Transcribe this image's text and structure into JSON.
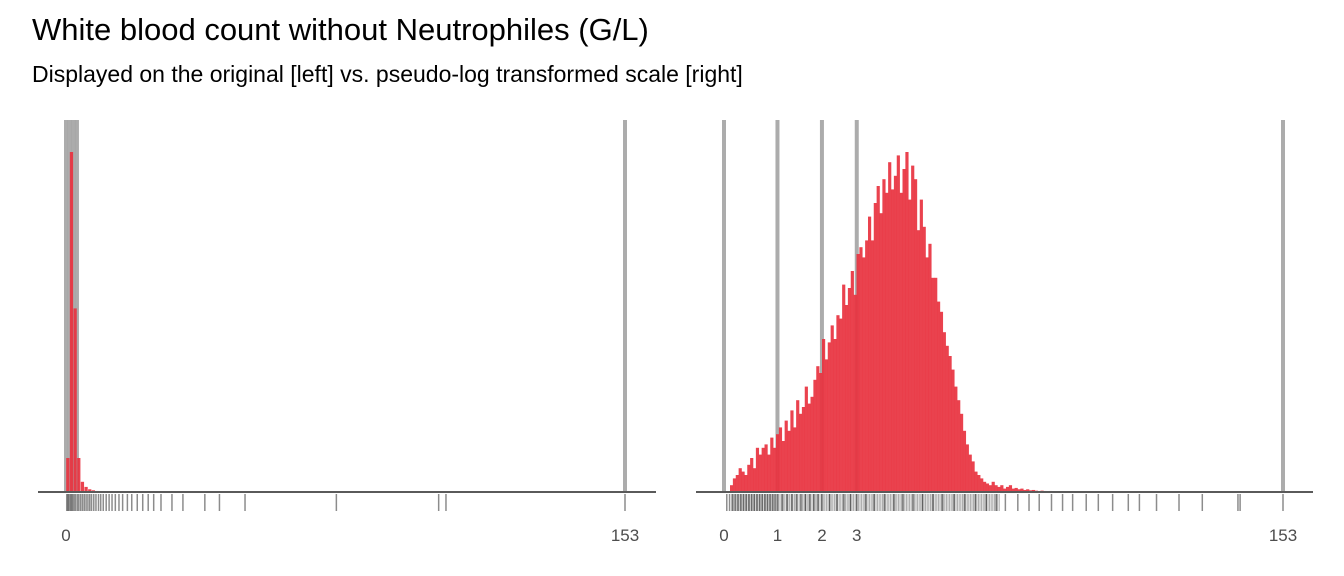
{
  "title": "White blood count without Neutrophiles (G/L)",
  "subtitle": "Displayed on the original [left] vs. pseudo-log transformed scale [right]",
  "colors": {
    "bar": "#e8323f",
    "refline": "#9e9e9e",
    "axis": "#5a5a5a",
    "rug": "#000000"
  },
  "chart_data": [
    {
      "type": "histogram",
      "scale": "original",
      "position": "left",
      "xlim": [
        0,
        153
      ],
      "reference_lines": [
        0,
        1,
        2,
        3,
        153
      ],
      "tick_labels": [
        "0",
        "153"
      ],
      "tick_values": [
        0,
        153
      ],
      "bin_width": 1,
      "bins": [
        {
          "x": 0,
          "count": 0.1
        },
        {
          "x": 1,
          "count": 1.0
        },
        {
          "x": 2,
          "count": 0.54
        },
        {
          "x": 3,
          "count": 0.1
        },
        {
          "x": 4,
          "count": 0.03
        },
        {
          "x": 5,
          "count": 0.015
        },
        {
          "x": 6,
          "count": 0.008
        },
        {
          "x": 7,
          "count": 0.005
        },
        {
          "x": 8,
          "count": 0.003
        },
        {
          "x": 9,
          "count": 0.002
        },
        {
          "x": 10,
          "count": 0.0015
        },
        {
          "x": 11,
          "count": 0.001
        }
      ],
      "rug": [
        0.2,
        0.5,
        0.8,
        1.2,
        1.5,
        1.8,
        2.2,
        2.6,
        3.1,
        3.5,
        4.0,
        4.5,
        5.0,
        5.5,
        6.0,
        6.5,
        7.0,
        7.6,
        8.2,
        8.9,
        9.5,
        10.2,
        11.0,
        11.8,
        12.6,
        13.5,
        14.5,
        15.5,
        16.8,
        18.0,
        19.5,
        21.0,
        22.5,
        24.0,
        26.0,
        29.0,
        32.0,
        38.0,
        42.0,
        49.0,
        74.0,
        102.0,
        104.0,
        153.0
      ]
    },
    {
      "type": "histogram",
      "scale": "pseudo-log",
      "position": "right",
      "xlim": [
        0,
        153
      ],
      "reference_lines": [
        0,
        1,
        2,
        3,
        153
      ],
      "tick_labels": [
        "0",
        "1",
        "2",
        "3",
        "153"
      ],
      "tick_values": [
        0,
        1,
        2,
        3,
        153
      ],
      "values": [
        0.02,
        0.04,
        0.05,
        0.07,
        0.06,
        0.05,
        0.08,
        0.1,
        0.07,
        0.13,
        0.11,
        0.13,
        0.14,
        0.11,
        0.16,
        0.13,
        0.17,
        0.19,
        0.15,
        0.21,
        0.18,
        0.24,
        0.19,
        0.27,
        0.23,
        0.25,
        0.31,
        0.26,
        0.28,
        0.33,
        0.37,
        0.35,
        0.45,
        0.39,
        0.44,
        0.49,
        0.45,
        0.52,
        0.51,
        0.61,
        0.55,
        0.6,
        0.65,
        0.58,
        0.7,
        0.72,
        0.69,
        0.74,
        0.81,
        0.74,
        0.85,
        0.9,
        0.82,
        0.92,
        0.88,
        0.97,
        0.89,
        0.93,
        0.99,
        0.88,
        0.95,
        1.0,
        0.86,
        0.96,
        0.92,
        0.77,
        0.86,
        0.78,
        0.69,
        0.73,
        0.63,
        0.63,
        0.56,
        0.53,
        0.47,
        0.43,
        0.4,
        0.36,
        0.31,
        0.27,
        0.23,
        0.18,
        0.14,
        0.11,
        0.09,
        0.06,
        0.05,
        0.04,
        0.03,
        0.025,
        0.02,
        0.03,
        0.02,
        0.015,
        0.02,
        0.01,
        0.015,
        0.02,
        0.01,
        0.012,
        0.008,
        0.01,
        0.006,
        0.008,
        0.005,
        0.006,
        0.004,
        0.003,
        0.004,
        0.003,
        0.002,
        0.003,
        0.002,
        0.002,
        0.001,
        0.002,
        0.001,
        0.001,
        0.001,
        0.001
      ],
      "rug": [
        0.05,
        0.1,
        0.15,
        0.2,
        0.25,
        0.3,
        0.35,
        0.4,
        0.45,
        0.5,
        0.55,
        0.6,
        0.65,
        0.7,
        0.75,
        0.8,
        0.85,
        0.9,
        0.95,
        1.0,
        1.1,
        1.2,
        1.3,
        1.4,
        1.5,
        1.6,
        1.7,
        1.8,
        1.9,
        2.0,
        2.2,
        2.4,
        2.6,
        2.8,
        3.0,
        3.3,
        3.6,
        4.0,
        4.4,
        4.8,
        5.3,
        5.8,
        6.4,
        7.0,
        7.8,
        8.6,
        9.5,
        10.5,
        11.5,
        12.5,
        14.0,
        15.5,
        17.0,
        19.0,
        21.0,
        23.0,
        26.0,
        29.0,
        33.0,
        38.0,
        42.0,
        49.0,
        60.0,
        74.0,
        102.0,
        104.0,
        153.0
      ]
    }
  ]
}
